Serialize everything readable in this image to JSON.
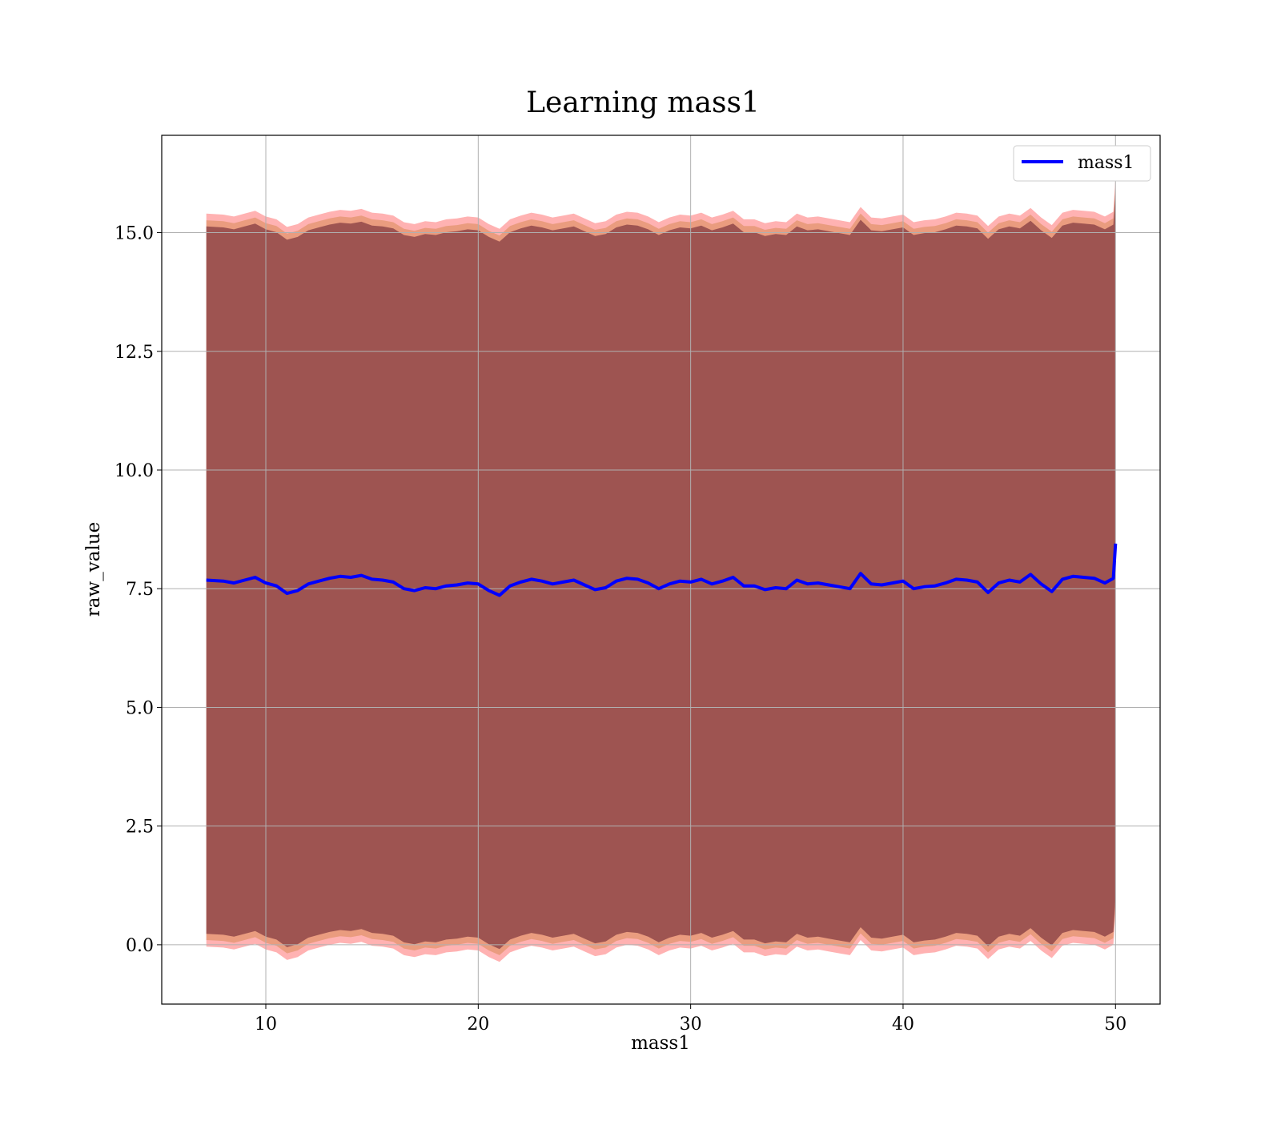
{
  "chart_data": {
    "type": "line",
    "title": "Learning mass1",
    "xlabel": "mass1",
    "ylabel": "raw_value",
    "xlim": [
      5.1,
      52.1
    ],
    "ylim": [
      -1.25,
      17.05
    ],
    "xticks": [
      10,
      20,
      30,
      40,
      50
    ],
    "xtick_labels": [
      "10",
      "20",
      "30",
      "40",
      "50"
    ],
    "yticks": [
      0.0,
      2.5,
      5.0,
      7.5,
      10.0,
      12.5,
      15.0
    ],
    "ytick_labels": [
      "0.0",
      "2.5",
      "5.0",
      "7.5",
      "10.0",
      "12.5",
      "15.0"
    ],
    "grid": true,
    "legend": {
      "position": "top-right",
      "entries": [
        "mass1"
      ]
    },
    "series": [
      {
        "name": "mass1",
        "color": "#0000ff",
        "x": [
          7.2,
          8.0,
          8.5,
          9.0,
          9.5,
          10.0,
          10.5,
          11.0,
          11.5,
          12.0,
          12.5,
          13.0,
          13.5,
          14.0,
          14.5,
          15.0,
          15.5,
          16.0,
          16.5,
          17.0,
          17.5,
          18.0,
          18.5,
          19.0,
          19.5,
          20.0,
          20.5,
          21.0,
          21.5,
          22.0,
          22.5,
          23.0,
          23.5,
          24.0,
          24.5,
          25.0,
          25.5,
          26.0,
          26.5,
          27.0,
          27.5,
          28.0,
          28.5,
          29.0,
          29.5,
          30.0,
          30.5,
          31.0,
          31.5,
          32.0,
          32.5,
          33.0,
          33.5,
          34.0,
          34.5,
          35.0,
          35.5,
          36.0,
          36.5,
          37.0,
          37.5,
          38.0,
          38.5,
          39.0,
          39.5,
          40.0,
          40.5,
          41.0,
          41.5,
          42.0,
          42.5,
          43.0,
          43.5,
          44.0,
          44.5,
          45.0,
          45.5,
          46.0,
          46.5,
          47.0,
          47.5,
          48.0,
          48.5,
          49.0,
          49.5,
          49.9,
          50.0
        ],
        "y": [
          7.68,
          7.66,
          7.62,
          7.68,
          7.74,
          7.62,
          7.56,
          7.4,
          7.46,
          7.6,
          7.66,
          7.72,
          7.76,
          7.74,
          7.78,
          7.7,
          7.68,
          7.64,
          7.5,
          7.46,
          7.52,
          7.5,
          7.56,
          7.58,
          7.62,
          7.6,
          7.46,
          7.36,
          7.56,
          7.64,
          7.7,
          7.66,
          7.6,
          7.64,
          7.68,
          7.58,
          7.48,
          7.52,
          7.66,
          7.72,
          7.7,
          7.62,
          7.5,
          7.6,
          7.66,
          7.64,
          7.7,
          7.6,
          7.66,
          7.74,
          7.56,
          7.56,
          7.48,
          7.52,
          7.5,
          7.68,
          7.6,
          7.62,
          7.58,
          7.54,
          7.5,
          7.82,
          7.6,
          7.58,
          7.62,
          7.66,
          7.5,
          7.54,
          7.56,
          7.62,
          7.7,
          7.68,
          7.64,
          7.42,
          7.62,
          7.68,
          7.64,
          7.8,
          7.6,
          7.44,
          7.7,
          7.76,
          7.74,
          7.72,
          7.62,
          7.72,
          8.45
        ]
      }
    ],
    "bands": [
      {
        "color": "#ff0000",
        "alpha": 0.3,
        "offset": 7.72
      },
      {
        "color": "#d08040",
        "alpha": 0.45,
        "offset": 7.58
      },
      {
        "color": "#5e1a2c",
        "alpha": 0.55,
        "offset": 7.45
      }
    ]
  }
}
